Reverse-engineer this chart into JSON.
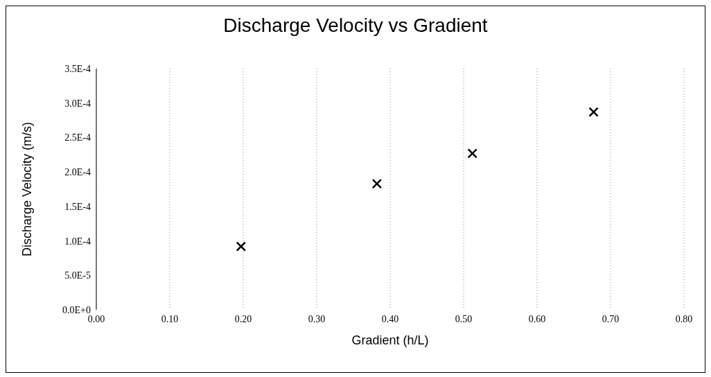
{
  "chart_data": {
    "type": "scatter",
    "title": "Discharge Velocity vs Gradient",
    "xlabel": "Gradient (h/L)",
    "ylabel": "Discharge Velocity (m/s)",
    "x": [
      0.197,
      0.382,
      0.512,
      0.677
    ],
    "series": [
      {
        "color": "#000000",
        "values": [
          9.2e-05,
          0.000183,
          0.000227,
          0.000287
        ]
      }
    ],
    "xlim": [
      0,
      0.8
    ],
    "xticks": [
      {
        "value": 0,
        "label": "0.00"
      },
      {
        "value": 0.1,
        "label": "0.10"
      },
      {
        "value": 0.2,
        "label": "0.20"
      },
      {
        "value": 0.3,
        "label": "0.30"
      },
      {
        "value": 0.4,
        "label": "0.40"
      },
      {
        "value": 0.5,
        "label": "0.50"
      },
      {
        "value": 0.6,
        "label": "0.60"
      },
      {
        "value": 0.7,
        "label": "0.70"
      },
      {
        "value": 0.8,
        "label": "0.80"
      }
    ],
    "ylim": [
      0,
      0.00035
    ],
    "yticks": [
      {
        "value": 0,
        "label": "0.0E+0"
      },
      {
        "value": 5e-05,
        "label": "5.0E-5"
      },
      {
        "value": 0.0001,
        "label": "1.0E-4"
      },
      {
        "value": 0.00015,
        "label": "1.5E-4"
      },
      {
        "value": 0.0002,
        "label": "2.0E-4"
      },
      {
        "value": 0.00025,
        "label": "2.5E-4"
      },
      {
        "value": 0.0003,
        "label": "3.0E-4"
      },
      {
        "value": 0.00035,
        "label": "3.5E-4"
      }
    ],
    "grid": "x",
    "marker": "cross",
    "legend": false
  }
}
